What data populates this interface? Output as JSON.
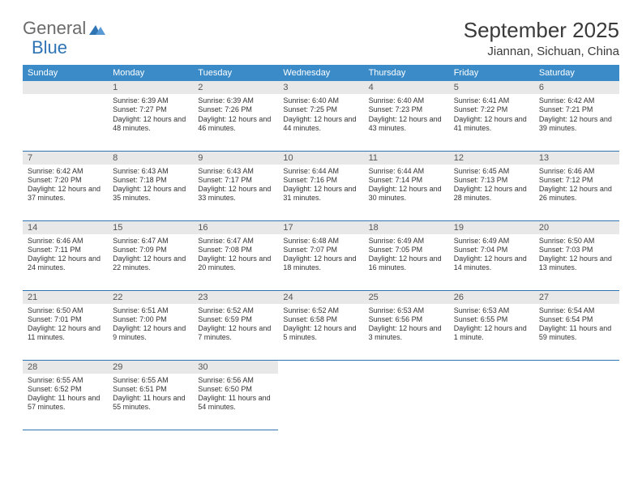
{
  "logo": {
    "text1": "General",
    "text2": "Blue"
  },
  "title": "September 2025",
  "location": "Jiannan, Sichuan, China",
  "header_bg": "#3b8bc9",
  "header_fg": "#ffffff",
  "row_border": "#2f75b5",
  "daynum_bg": "#e8e8e8",
  "body_bg": "#ffffff",
  "text_color": "#333333",
  "weekdays": [
    "Sunday",
    "Monday",
    "Tuesday",
    "Wednesday",
    "Thursday",
    "Friday",
    "Saturday"
  ],
  "weeks": [
    [
      null,
      {
        "n": "1",
        "sunrise": "Sunrise: 6:39 AM",
        "sunset": "Sunset: 7:27 PM",
        "day": "Daylight: 12 hours and 48 minutes."
      },
      {
        "n": "2",
        "sunrise": "Sunrise: 6:39 AM",
        "sunset": "Sunset: 7:26 PM",
        "day": "Daylight: 12 hours and 46 minutes."
      },
      {
        "n": "3",
        "sunrise": "Sunrise: 6:40 AM",
        "sunset": "Sunset: 7:25 PM",
        "day": "Daylight: 12 hours and 44 minutes."
      },
      {
        "n": "4",
        "sunrise": "Sunrise: 6:40 AM",
        "sunset": "Sunset: 7:23 PM",
        "day": "Daylight: 12 hours and 43 minutes."
      },
      {
        "n": "5",
        "sunrise": "Sunrise: 6:41 AM",
        "sunset": "Sunset: 7:22 PM",
        "day": "Daylight: 12 hours and 41 minutes."
      },
      {
        "n": "6",
        "sunrise": "Sunrise: 6:42 AM",
        "sunset": "Sunset: 7:21 PM",
        "day": "Daylight: 12 hours and 39 minutes."
      }
    ],
    [
      {
        "n": "7",
        "sunrise": "Sunrise: 6:42 AM",
        "sunset": "Sunset: 7:20 PM",
        "day": "Daylight: 12 hours and 37 minutes."
      },
      {
        "n": "8",
        "sunrise": "Sunrise: 6:43 AM",
        "sunset": "Sunset: 7:18 PM",
        "day": "Daylight: 12 hours and 35 minutes."
      },
      {
        "n": "9",
        "sunrise": "Sunrise: 6:43 AM",
        "sunset": "Sunset: 7:17 PM",
        "day": "Daylight: 12 hours and 33 minutes."
      },
      {
        "n": "10",
        "sunrise": "Sunrise: 6:44 AM",
        "sunset": "Sunset: 7:16 PM",
        "day": "Daylight: 12 hours and 31 minutes."
      },
      {
        "n": "11",
        "sunrise": "Sunrise: 6:44 AM",
        "sunset": "Sunset: 7:14 PM",
        "day": "Daylight: 12 hours and 30 minutes."
      },
      {
        "n": "12",
        "sunrise": "Sunrise: 6:45 AM",
        "sunset": "Sunset: 7:13 PM",
        "day": "Daylight: 12 hours and 28 minutes."
      },
      {
        "n": "13",
        "sunrise": "Sunrise: 6:46 AM",
        "sunset": "Sunset: 7:12 PM",
        "day": "Daylight: 12 hours and 26 minutes."
      }
    ],
    [
      {
        "n": "14",
        "sunrise": "Sunrise: 6:46 AM",
        "sunset": "Sunset: 7:11 PM",
        "day": "Daylight: 12 hours and 24 minutes."
      },
      {
        "n": "15",
        "sunrise": "Sunrise: 6:47 AM",
        "sunset": "Sunset: 7:09 PM",
        "day": "Daylight: 12 hours and 22 minutes."
      },
      {
        "n": "16",
        "sunrise": "Sunrise: 6:47 AM",
        "sunset": "Sunset: 7:08 PM",
        "day": "Daylight: 12 hours and 20 minutes."
      },
      {
        "n": "17",
        "sunrise": "Sunrise: 6:48 AM",
        "sunset": "Sunset: 7:07 PM",
        "day": "Daylight: 12 hours and 18 minutes."
      },
      {
        "n": "18",
        "sunrise": "Sunrise: 6:49 AM",
        "sunset": "Sunset: 7:05 PM",
        "day": "Daylight: 12 hours and 16 minutes."
      },
      {
        "n": "19",
        "sunrise": "Sunrise: 6:49 AM",
        "sunset": "Sunset: 7:04 PM",
        "day": "Daylight: 12 hours and 14 minutes."
      },
      {
        "n": "20",
        "sunrise": "Sunrise: 6:50 AM",
        "sunset": "Sunset: 7:03 PM",
        "day": "Daylight: 12 hours and 13 minutes."
      }
    ],
    [
      {
        "n": "21",
        "sunrise": "Sunrise: 6:50 AM",
        "sunset": "Sunset: 7:01 PM",
        "day": "Daylight: 12 hours and 11 minutes."
      },
      {
        "n": "22",
        "sunrise": "Sunrise: 6:51 AM",
        "sunset": "Sunset: 7:00 PM",
        "day": "Daylight: 12 hours and 9 minutes."
      },
      {
        "n": "23",
        "sunrise": "Sunrise: 6:52 AM",
        "sunset": "Sunset: 6:59 PM",
        "day": "Daylight: 12 hours and 7 minutes."
      },
      {
        "n": "24",
        "sunrise": "Sunrise: 6:52 AM",
        "sunset": "Sunset: 6:58 PM",
        "day": "Daylight: 12 hours and 5 minutes."
      },
      {
        "n": "25",
        "sunrise": "Sunrise: 6:53 AM",
        "sunset": "Sunset: 6:56 PM",
        "day": "Daylight: 12 hours and 3 minutes."
      },
      {
        "n": "26",
        "sunrise": "Sunrise: 6:53 AM",
        "sunset": "Sunset: 6:55 PM",
        "day": "Daylight: 12 hours and 1 minute."
      },
      {
        "n": "27",
        "sunrise": "Sunrise: 6:54 AM",
        "sunset": "Sunset: 6:54 PM",
        "day": "Daylight: 11 hours and 59 minutes."
      }
    ],
    [
      {
        "n": "28",
        "sunrise": "Sunrise: 6:55 AM",
        "sunset": "Sunset: 6:52 PM",
        "day": "Daylight: 11 hours and 57 minutes."
      },
      {
        "n": "29",
        "sunrise": "Sunrise: 6:55 AM",
        "sunset": "Sunset: 6:51 PM",
        "day": "Daylight: 11 hours and 55 minutes."
      },
      {
        "n": "30",
        "sunrise": "Sunrise: 6:56 AM",
        "sunset": "Sunset: 6:50 PM",
        "day": "Daylight: 11 hours and 54 minutes."
      },
      null,
      null,
      null,
      null
    ]
  ]
}
